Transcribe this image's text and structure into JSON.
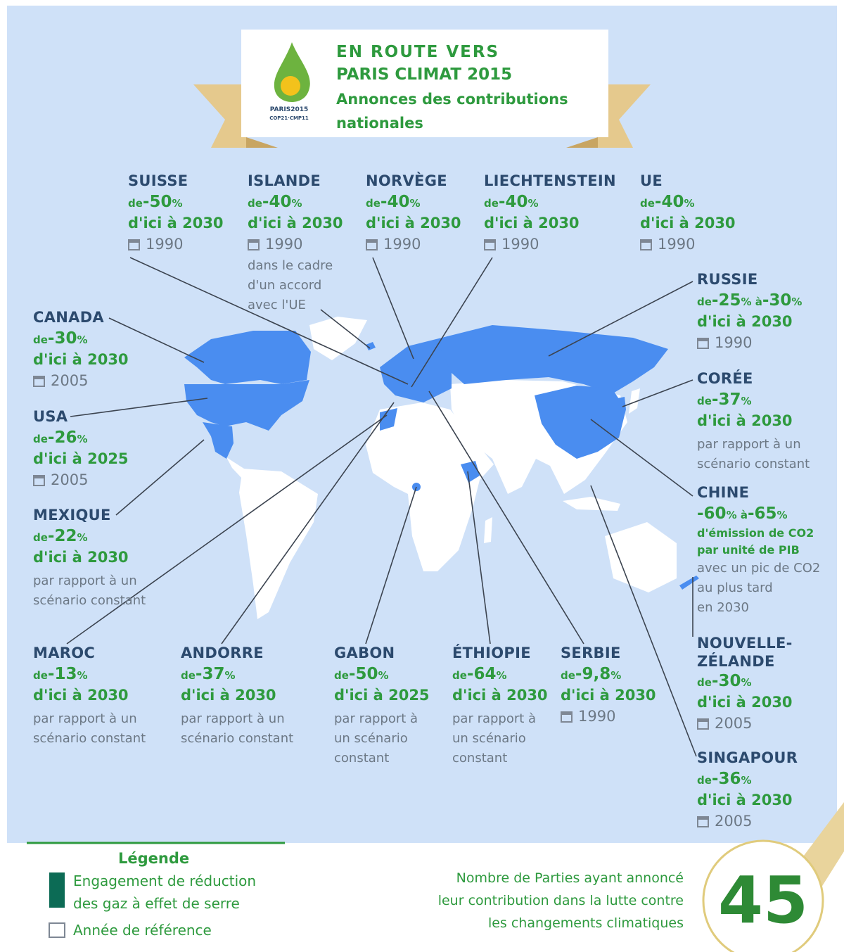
{
  "header": {
    "title": [
      "EN ROUTE VERS",
      "PARIS CLIMAT 2015"
    ],
    "subtitle": [
      "Annonces des contributions",
      "nationales"
    ],
    "logo": [
      "PARIS2015",
      "COP21·CMP11"
    ]
  },
  "countries": [
    {
      "name": "SUISSE",
      "target": [
        {
          "small": "de"
        },
        {
          "large": "-50"
        },
        {
          "small": "%"
        }
      ],
      "goal": [
        "d'ici à 2030"
      ],
      "ref": "1990"
    },
    {
      "name": "ISLANDE",
      "target": [
        {
          "small": "de"
        },
        {
          "large": "-40"
        },
        {
          "small": "%"
        }
      ],
      "goal": [
        "d'ici à 2030"
      ],
      "ref": "1990",
      "note": [
        "dans le cadre",
        "d'un accord",
        "avec l'UE"
      ]
    },
    {
      "name": "NORVÈGE",
      "target": [
        {
          "small": "de"
        },
        {
          "large": "-40"
        },
        {
          "small": "%"
        }
      ],
      "goal": [
        "d'ici à 2030"
      ],
      "ref": "1990"
    },
    {
      "name": "LIECHTENSTEIN",
      "target": [
        {
          "small": "de"
        },
        {
          "large": "-40"
        },
        {
          "small": "%"
        }
      ],
      "goal": [
        "d'ici à 2030"
      ],
      "ref": "1990"
    },
    {
      "name": "UE",
      "target": [
        {
          "small": "de"
        },
        {
          "large": "-40"
        },
        {
          "small": "%"
        }
      ],
      "goal": [
        "d'ici à 2030"
      ],
      "ref": "1990"
    },
    {
      "name": "RUSSIE",
      "target": [
        {
          "small": "de"
        },
        {
          "large": "-25"
        },
        {
          "small": "% à"
        },
        {
          "large": "-30"
        },
        {
          "small": "%"
        }
      ],
      "goal": [
        "d'ici à 2030"
      ],
      "ref": "1990"
    },
    {
      "name": "CORÉE",
      "target": [
        {
          "small": "de"
        },
        {
          "large": "-37"
        },
        {
          "small": "%"
        }
      ],
      "goal": [
        "d'ici à 2030"
      ],
      "note": [
        "par rapport à un",
        "scénario constant"
      ]
    },
    {
      "name": "CHINE",
      "target": [
        {
          "large": "-60"
        },
        {
          "small": "% à"
        },
        {
          "large": "-65"
        },
        {
          "small": "%"
        }
      ],
      "goal": [
        "d'émission de CO2",
        "par unité de PIB"
      ],
      "note": [
        "avec un pic de CO2",
        "au plus tard",
        "en 2030"
      ]
    },
    {
      "name": "NOUVELLE-ZÉLANDE",
      "target": [
        {
          "small": "de"
        },
        {
          "large": "-30"
        },
        {
          "small": "%"
        }
      ],
      "goal": [
        "d'ici à 2030"
      ],
      "ref": "2005"
    },
    {
      "name": "SINGAPOUR",
      "target": [
        {
          "small": "de"
        },
        {
          "large": "-36"
        },
        {
          "small": "%"
        }
      ],
      "goal": [
        "d'ici à 2030"
      ],
      "ref": "2005"
    },
    {
      "name": "CANADA",
      "target": [
        {
          "small": "de"
        },
        {
          "large": "-30"
        },
        {
          "small": "%"
        }
      ],
      "goal": [
        "d'ici à 2030"
      ],
      "ref": "2005"
    },
    {
      "name": "USA",
      "target": [
        {
          "small": "de"
        },
        {
          "large": "-26"
        },
        {
          "small": "%"
        }
      ],
      "goal": [
        "d'ici à 2025"
      ],
      "ref": "2005"
    },
    {
      "name": "MEXIQUE",
      "target": [
        {
          "small": "de"
        },
        {
          "large": "-22"
        },
        {
          "small": "%"
        }
      ],
      "goal": [
        "d'ici à 2030"
      ],
      "note": [
        "par rapport à un",
        "scénario constant"
      ]
    },
    {
      "name": "MAROC",
      "target": [
        {
          "small": "de"
        },
        {
          "large": "-13"
        },
        {
          "small": "%"
        }
      ],
      "goal": [
        "d'ici à 2030"
      ],
      "note": [
        "par rapport à un",
        "scénario constant"
      ]
    },
    {
      "name": "ANDORRE",
      "target": [
        {
          "small": "de"
        },
        {
          "large": "-37"
        },
        {
          "small": "%"
        }
      ],
      "goal": [
        "d'ici à 2030"
      ],
      "note": [
        "par rapport à un",
        "scénario constant"
      ]
    },
    {
      "name": "GABON",
      "target": [
        {
          "small": "de"
        },
        {
          "large": "-50"
        },
        {
          "small": "%"
        }
      ],
      "goal": [
        "d'ici à 2025"
      ],
      "note": [
        "par rapport à",
        "un scénario",
        "constant"
      ]
    },
    {
      "name": "ÉTHIOPIE",
      "target": [
        {
          "small": "de"
        },
        {
          "large": "-64"
        },
        {
          "small": "%"
        }
      ],
      "goal": [
        "d'ici à 2030"
      ],
      "note": [
        "par rapport à",
        "un scénario",
        "constant"
      ]
    },
    {
      "name": "SERBIE",
      "target": [
        {
          "small": "de"
        },
        {
          "large": "-9,8"
        },
        {
          "small": "%"
        }
      ],
      "goal": [
        "d'ici à 2030"
      ],
      "ref": "1990"
    }
  ],
  "legend": {
    "title": "Légende",
    "items": [
      [
        "Engagement de réduction",
        "des gaz à effet de serre"
      ],
      [
        "Année de référence"
      ]
    ]
  },
  "counter": {
    "text": [
      "Nombre de Parties ayant annoncé",
      "leur contribution dans la lutte contre",
      "les changements climatiques"
    ],
    "count": "45"
  }
}
